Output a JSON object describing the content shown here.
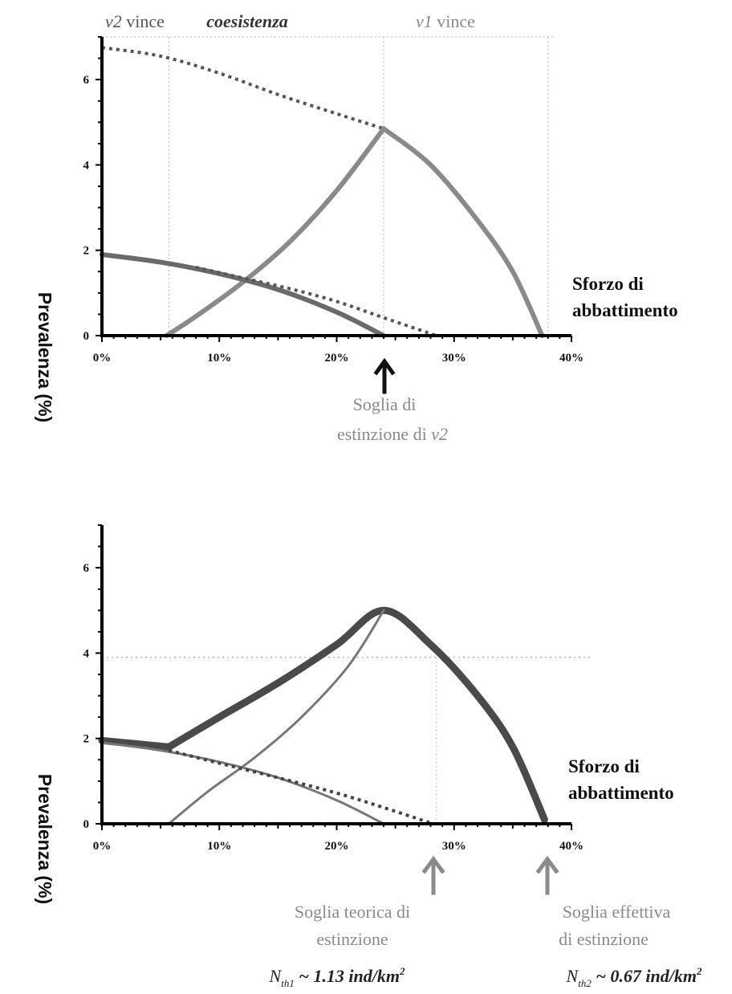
{
  "chart_data": [
    {
      "type": "line",
      "ylabel": "Prevalenza (%)",
      "xlabel": "Sforzo di abbattimento",
      "xlim": [
        0,
        40
      ],
      "ylim": [
        0,
        7
      ],
      "x_ticks": [
        "0%",
        "10%",
        "20%",
        "30%",
        "40%"
      ],
      "y_ticks": [
        "0",
        "2",
        "4",
        "6"
      ],
      "regions": [
        {
          "prefix": "v2",
          "suffix": " vince",
          "range": [
            0,
            5.7
          ],
          "color": "#555555"
        },
        {
          "prefix": "",
          "suffix": "coesistenza",
          "range": [
            5.7,
            24
          ],
          "color": "#333333"
        },
        {
          "prefix": "v1",
          "suffix": " vince",
          "range": [
            24,
            38
          ],
          "color": "#888888"
        }
      ],
      "series": [
        {
          "style": "dashed",
          "color": "#555555",
          "x": [
            0,
            5,
            10,
            15,
            20,
            24
          ],
          "y": [
            6.75,
            6.55,
            6.15,
            5.65,
            5.2,
            4.85
          ]
        },
        {
          "style": "solid",
          "color": "#8a8a8a",
          "x": [
            5.5,
            8,
            12,
            16,
            20,
            24
          ],
          "y": [
            0,
            0.45,
            1.25,
            2.2,
            3.4,
            4.85
          ]
        },
        {
          "style": "solid",
          "color": "#8a8a8a",
          "x": [
            24,
            28,
            32,
            35,
            37.5
          ],
          "y": [
            4.85,
            4.0,
            2.7,
            1.5,
            0
          ]
        },
        {
          "style": "solid",
          "color": "#6a6a6a",
          "x": [
            0,
            5,
            10,
            15,
            20,
            24
          ],
          "y": [
            1.9,
            1.72,
            1.45,
            1.08,
            0.55,
            0
          ]
        },
        {
          "style": "dashed",
          "color": "#555555",
          "x": [
            8,
            12,
            16,
            20,
            24,
            28.5
          ],
          "y": [
            1.6,
            1.35,
            1.1,
            0.8,
            0.42,
            0
          ]
        }
      ],
      "annotations": [
        {
          "x": 24,
          "color": "#111111",
          "lines": [
            {
              "prefix": "",
              "suffix": "Soglia di"
            },
            {
              "prefix": "estinzione di ",
              "suffix": "v2"
            }
          ]
        }
      ]
    },
    {
      "type": "line",
      "ylabel": "Prevalenza (%)",
      "xlabel": "Sforzo di abbattimento",
      "xlim": [
        0,
        40
      ],
      "ylim": [
        0,
        7
      ],
      "x_ticks": [
        "0%",
        "10%",
        "20%",
        "30%",
        "40%"
      ],
      "y_ticks": [
        "0",
        "2",
        "4",
        "6"
      ],
      "reference": {
        "y": 3.9,
        "x": 28.5
      },
      "series": [
        {
          "style": "thick",
          "color": "#4a4a4a",
          "x": [
            0,
            5.7
          ],
          "y": [
            1.95,
            1.8
          ]
        },
        {
          "style": "thick",
          "color": "#4a4a4a",
          "x": [
            5.7,
            10,
            15,
            20,
            24,
            28,
            32,
            35,
            37.7
          ],
          "y": [
            1.8,
            2.5,
            3.3,
            4.2,
            5.0,
            4.2,
            3.0,
            1.8,
            0.1
          ]
        },
        {
          "style": "thin",
          "color": "#777777",
          "x": [
            5.7,
            9,
            13,
            17,
            21,
            24
          ],
          "y": [
            0,
            0.75,
            1.55,
            2.5,
            3.7,
            5.0
          ]
        },
        {
          "style": "thin",
          "color": "#777777",
          "x": [
            0,
            5,
            10,
            15,
            20,
            24
          ],
          "y": [
            1.9,
            1.72,
            1.45,
            1.08,
            0.55,
            0
          ]
        },
        {
          "style": "dashed",
          "color": "#444444",
          "x": [
            5.7,
            10,
            15,
            20,
            24,
            28.2
          ],
          "y": [
            1.72,
            1.42,
            1.08,
            0.72,
            0.38,
            0
          ]
        }
      ],
      "annotations": [
        {
          "x": 28.5,
          "color": "#8a8a8a",
          "lines": [
            "Soglia teorica di",
            "estinzione"
          ],
          "formula": {
            "main": "N",
            "sub": "th1",
            "value": " ~ 1.13 ind/km",
            "sup": "2"
          }
        },
        {
          "x": 38,
          "color": "#8a8a8a",
          "lines": [
            "Soglia effettiva",
            "di estinzione"
          ],
          "formula": {
            "main": "N",
            "sub": "th2",
            "value": " ~ 0.67 ind/km",
            "sup": "2"
          }
        }
      ]
    }
  ]
}
